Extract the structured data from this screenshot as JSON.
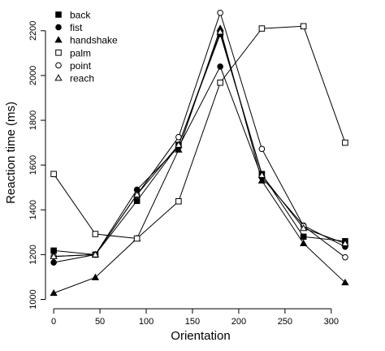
{
  "chart_data": {
    "type": "line",
    "xlabel": "Orientation",
    "ylabel": "Reaction time (ms)",
    "x": [
      0,
      45,
      90,
      135,
      180,
      225,
      270,
      315
    ],
    "xlim": [
      -8,
      330
    ],
    "ylim": [
      980,
      2330
    ],
    "xticks": [
      0,
      50,
      100,
      150,
      200,
      250,
      300
    ],
    "yticks": [
      1000,
      1200,
      1400,
      1600,
      1800,
      2000,
      2200
    ],
    "legend_position": "top-left",
    "grid": false,
    "series": [
      {
        "name": "back",
        "marker": "filled-square",
        "values": [
          1218,
          1200,
          1440,
          1690,
          2185,
          1560,
          1280,
          1260
        ]
      },
      {
        "name": "fist",
        "marker": "filled-circle",
        "values": [
          1165,
          1200,
          1490,
          1680,
          2040,
          1545,
          1330,
          1235
        ]
      },
      {
        "name": "handshake",
        "marker": "filled-triangle",
        "values": [
          1028,
          1098,
          1272,
          1668,
          2210,
          1530,
          1250,
          1075
        ]
      },
      {
        "name": "palm",
        "marker": "open-square",
        "values": [
          1560,
          1292,
          1272,
          1438,
          1968,
          2210,
          2220,
          1700
        ]
      },
      {
        "name": "point",
        "marker": "open-circle",
        "values": [
          1192,
          1200,
          1468,
          1725,
          2280,
          1672,
          1328,
          1188
        ]
      },
      {
        "name": "reach",
        "marker": "open-triangle",
        "values": [
          1192,
          1200,
          1468,
          1690,
          2195,
          1555,
          1318,
          1250
        ]
      }
    ]
  }
}
